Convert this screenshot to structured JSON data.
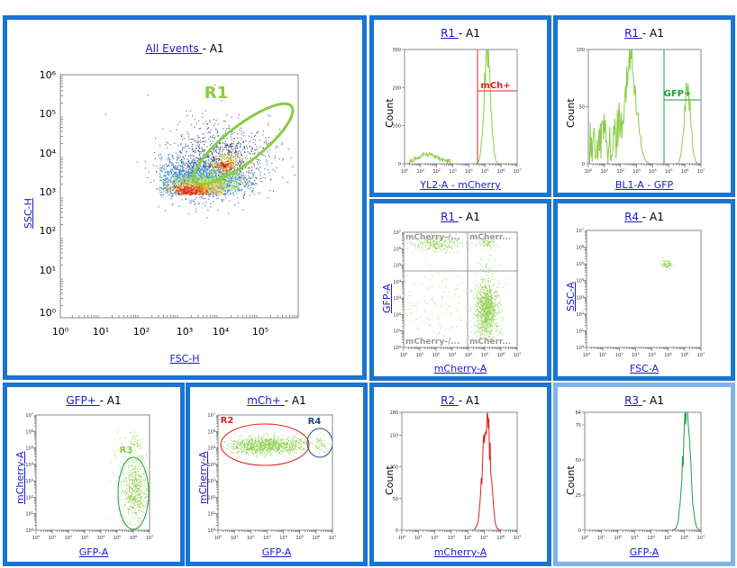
{
  "colors": {
    "border": "#1a74d1",
    "link": "#1a1acc",
    "green": "#88cc44",
    "red": "#e02020",
    "darkgreen": "#1b9e3a",
    "gate_blue": "#1a4a7a"
  },
  "panels": [
    {
      "id": "p-allevents",
      "title_link": "All Events ",
      "title_rest": " - A1",
      "xlabel": "FSC-H",
      "ylabel": "SSC-H",
      "ylabel_link": true
    },
    {
      "id": "p-yl2",
      "title_link": "R1 ",
      "title_rest": " - A1",
      "xlabel": "YL2-A - mCherry",
      "ylabel": "Count",
      "ylabel_link": false
    },
    {
      "id": "p-bl1",
      "title_link": "R1 ",
      "title_rest": " - A1",
      "xlabel": "BL1-A - GFP",
      "ylabel": "Count",
      "ylabel_link": false
    },
    {
      "id": "p-quad",
      "title_link": "R1 ",
      "title_rest": " - A1",
      "xlabel": "mCherry-A",
      "ylabel": "GFP-A",
      "ylabel_link": true
    },
    {
      "id": "p-r4",
      "title_link": "R4 ",
      "title_rest": " - A1",
      "xlabel": "FSC-A",
      "ylabel": "SSC-A",
      "ylabel_link": true
    },
    {
      "id": "p-gfpplus",
      "title_link": "GFP+ ",
      "title_rest": " - A1",
      "xlabel": "GFP-A",
      "ylabel": "mCherry-A",
      "ylabel_link": true
    },
    {
      "id": "p-mchplus",
      "title_link": "mCh+ ",
      "title_rest": " - A1",
      "xlabel": "GFP-A",
      "ylabel": "mCherry-A",
      "ylabel_link": true
    },
    {
      "id": "p-r2",
      "title_link": "R2 ",
      "title_rest": " - A1",
      "xlabel": "mCherry-A",
      "ylabel": "Count",
      "ylabel_link": false
    },
    {
      "id": "p-r3",
      "title_link": "R3 ",
      "title_rest": " - A1",
      "xlabel": "GFP-A",
      "ylabel": "Count",
      "ylabel_link": false
    }
  ],
  "gates": {
    "r1": "R1",
    "mch": "mCh+",
    "gfp": "GFP+",
    "r2": "R2",
    "r3": "R3",
    "r4": "R4",
    "q_tl": "mCherry-/...",
    "q_tr": "mCherr...",
    "q_bl": "mCherry-/...",
    "q_br": "mCherr..."
  },
  "chart_data": [
    {
      "type": "scatter",
      "panel": "p-allevents",
      "xlabel": "FSC-H",
      "ylabel": "SSC-H",
      "xscale": "log",
      "yscale": "log",
      "xlim": [
        1,
        100000
      ],
      "ylim": [
        1,
        1000000
      ],
      "x_ticks": [
        "10⁰",
        "10¹",
        "10²",
        "10³",
        "10⁴",
        "10⁵"
      ],
      "y_ticks": [
        "10⁰",
        "10¹",
        "10²",
        "10³",
        "10⁴",
        "10⁵",
        "10⁶"
      ],
      "density_center": {
        "x": 8000,
        "y": 3000
      },
      "gate": {
        "name": "R1",
        "center": {
          "x": 40000,
          "y": 8000
        }
      }
    },
    {
      "type": "area",
      "panel": "p-yl2",
      "xlabel": "YL2-A - mCherry",
      "ylabel": "Count",
      "xscale": "log",
      "ylim": [
        0,
        300
      ],
      "y_ticks": [
        0,
        100,
        200,
        300
      ],
      "peaks": [
        {
          "x": 20,
          "y": 20
        },
        {
          "x": 20000,
          "y": 320
        }
      ],
      "gate": {
        "name": "mCh+",
        "x_min": 6000
      }
    },
    {
      "type": "area",
      "panel": "p-bl1",
      "xlabel": "BL1-A - GFP",
      "ylabel": "Count",
      "xscale": "log",
      "ylim": [
        0,
        100
      ],
      "y_ticks": [
        0,
        50,
        100
      ],
      "peaks": [
        {
          "x": 500,
          "y": 95
        },
        {
          "x": 60000,
          "y": 65
        }
      ],
      "gate": {
        "name": "GFP+",
        "x_min": 12000
      }
    },
    {
      "type": "scatter",
      "panel": "p-quad",
      "xlabel": "mCherry-A",
      "ylabel": "GFP-A",
      "xscale": "log",
      "yscale": "log",
      "quadrants": [
        "mCherry-/...",
        "mCherr...",
        "mCherry-/...",
        "mCherr..."
      ],
      "clusters": [
        {
          "x": 30,
          "y": 30000
        },
        {
          "x": 30000,
          "y": 3
        },
        {
          "x": 30000,
          "y": 30000
        }
      ]
    },
    {
      "type": "scatter",
      "panel": "p-r4",
      "xlabel": "FSC-A",
      "ylabel": "SSC-A",
      "xscale": "log",
      "yscale": "log",
      "clusters": [
        {
          "x": 20000,
          "y": 10000
        }
      ]
    },
    {
      "type": "scatter",
      "panel": "p-gfpplus",
      "xlabel": "GFP-A",
      "ylabel": "mCherry-A",
      "xscale": "log",
      "yscale": "log",
      "clusters": [
        {
          "x": 30000,
          "y": 30
        },
        {
          "x": 30000,
          "y": 30000
        }
      ],
      "gate": {
        "name": "R3"
      }
    },
    {
      "type": "scatter",
      "panel": "p-mchplus",
      "xlabel": "GFP-A",
      "ylabel": "mCherry-A",
      "xscale": "log",
      "yscale": "log",
      "clusters": [
        {
          "x": 300,
          "y": 30000
        },
        {
          "x": 100000,
          "y": 30000
        }
      ],
      "gates": [
        "R2",
        "R4"
      ]
    },
    {
      "type": "area",
      "panel": "p-r2",
      "xlabel": "mCherry-A",
      "ylabel": "Count",
      "xscale": "log",
      "ylim": [
        0,
        186
      ],
      "y_ticks": [
        0,
        50,
        100,
        150,
        186
      ],
      "peaks": [
        {
          "x": 20000,
          "y": 186
        }
      ]
    },
    {
      "type": "area",
      "panel": "p-r3",
      "xlabel": "GFP-A",
      "ylabel": "Count",
      "xscale": "log",
      "ylim": [
        0,
        84
      ],
      "y_ticks": [
        0,
        25,
        50,
        75,
        84
      ],
      "peaks": [
        {
          "x": 20000,
          "y": 84
        }
      ]
    }
  ]
}
